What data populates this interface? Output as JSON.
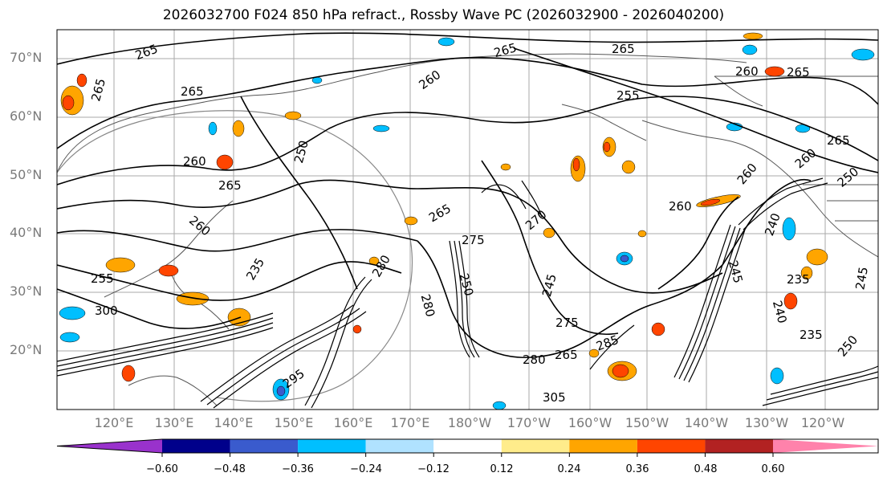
{
  "title": "2026032700 F024 850 hPa refract., Rossby Wave PC (2026032900 - 2026040200)",
  "lat_labels": [
    "70°N",
    "60°N",
    "50°N",
    "40°N",
    "30°N",
    "20°N"
  ],
  "lon_labels": [
    "120°E",
    "130°E",
    "140°E",
    "150°E",
    "160°E",
    "170°E",
    "180°W",
    "170°W",
    "160°W",
    "150°W",
    "140°W",
    "130°W",
    "120°W"
  ],
  "colorbar": {
    "colors": [
      "#9932cc",
      "#00008b",
      "#3a5bcd",
      "#00bfff",
      "#b0e2ff",
      "#ffffff",
      "#ffec8b",
      "#ffa500",
      "#ff4500",
      "#b22222",
      "#ff82ab"
    ],
    "ticks": [
      "−0.60",
      "−0.48",
      "−0.36",
      "−0.24",
      "−0.12",
      "0.12",
      "0.24",
      "0.36",
      "0.48",
      "0.60"
    ]
  },
  "contour_labels": [
    "265",
    "265",
    "265",
    "265",
    "260",
    "265",
    "260",
    "265",
    "255",
    "250",
    "260",
    "265",
    "260",
    "260",
    "260",
    "250",
    "265",
    "265",
    "275",
    "280",
    "245",
    "250",
    "255",
    "240",
    "235",
    "240",
    "235",
    "245",
    "280",
    "265",
    "285",
    "270",
    "260",
    "235",
    "245",
    "250",
    "300",
    "295",
    "305",
    "275",
    "280"
  ]
}
